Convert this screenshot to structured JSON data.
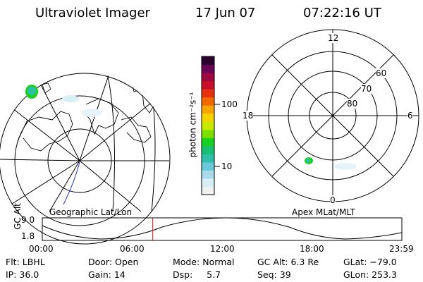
{
  "header": {
    "title": "Ultraviolet Imager",
    "date": "17 Jun 07",
    "time": "07:22:16 UT"
  },
  "left_panel": {
    "caption": "Geographic Lat/Lon"
  },
  "right_panel": {
    "caption": "Apex MLat/MLT",
    "mlt_labels": {
      "top": "12",
      "left": "18",
      "right": "6",
      "bottom": "0"
    },
    "lat_labels": [
      "60",
      "70",
      "80"
    ]
  },
  "colorbar": {
    "unit_label": "photon cm⁻²s⁻¹",
    "ticks": [
      "100",
      "10"
    ],
    "colors": [
      "#f0f0f0",
      "#d6eef6",
      "#a8dcec",
      "#69c9d9",
      "#2dbfa8",
      "#16c070",
      "#18d020",
      "#7ee000",
      "#c8e800",
      "#f4d400",
      "#f7a500",
      "#f36800",
      "#e8320f",
      "#c8102a",
      "#a00840",
      "#6a0455",
      "#2a0230"
    ]
  },
  "timeline": {
    "ylabel": "GC Alt",
    "ticks_y": [
      "9.0",
      "1.8"
    ],
    "ticks_x": [
      "00:00",
      "06:00",
      "12:00",
      "18:00",
      "23:59"
    ],
    "current_time": "07:22"
  },
  "status": {
    "row1": {
      "c1": "Flt: LBHL",
      "c2": "Door: Open",
      "c3": "Mode: Normal",
      "c4": "GC Alt: 6.3 Re",
      "c5": "GLat: −79.0"
    },
    "row2": {
      "c1": "IP: 36.0",
      "c2": "Gain: 14",
      "c3": "Dsp:     5.7",
      "c4": "Seq: 39",
      "c5": "GLon: 253.3"
    }
  }
}
